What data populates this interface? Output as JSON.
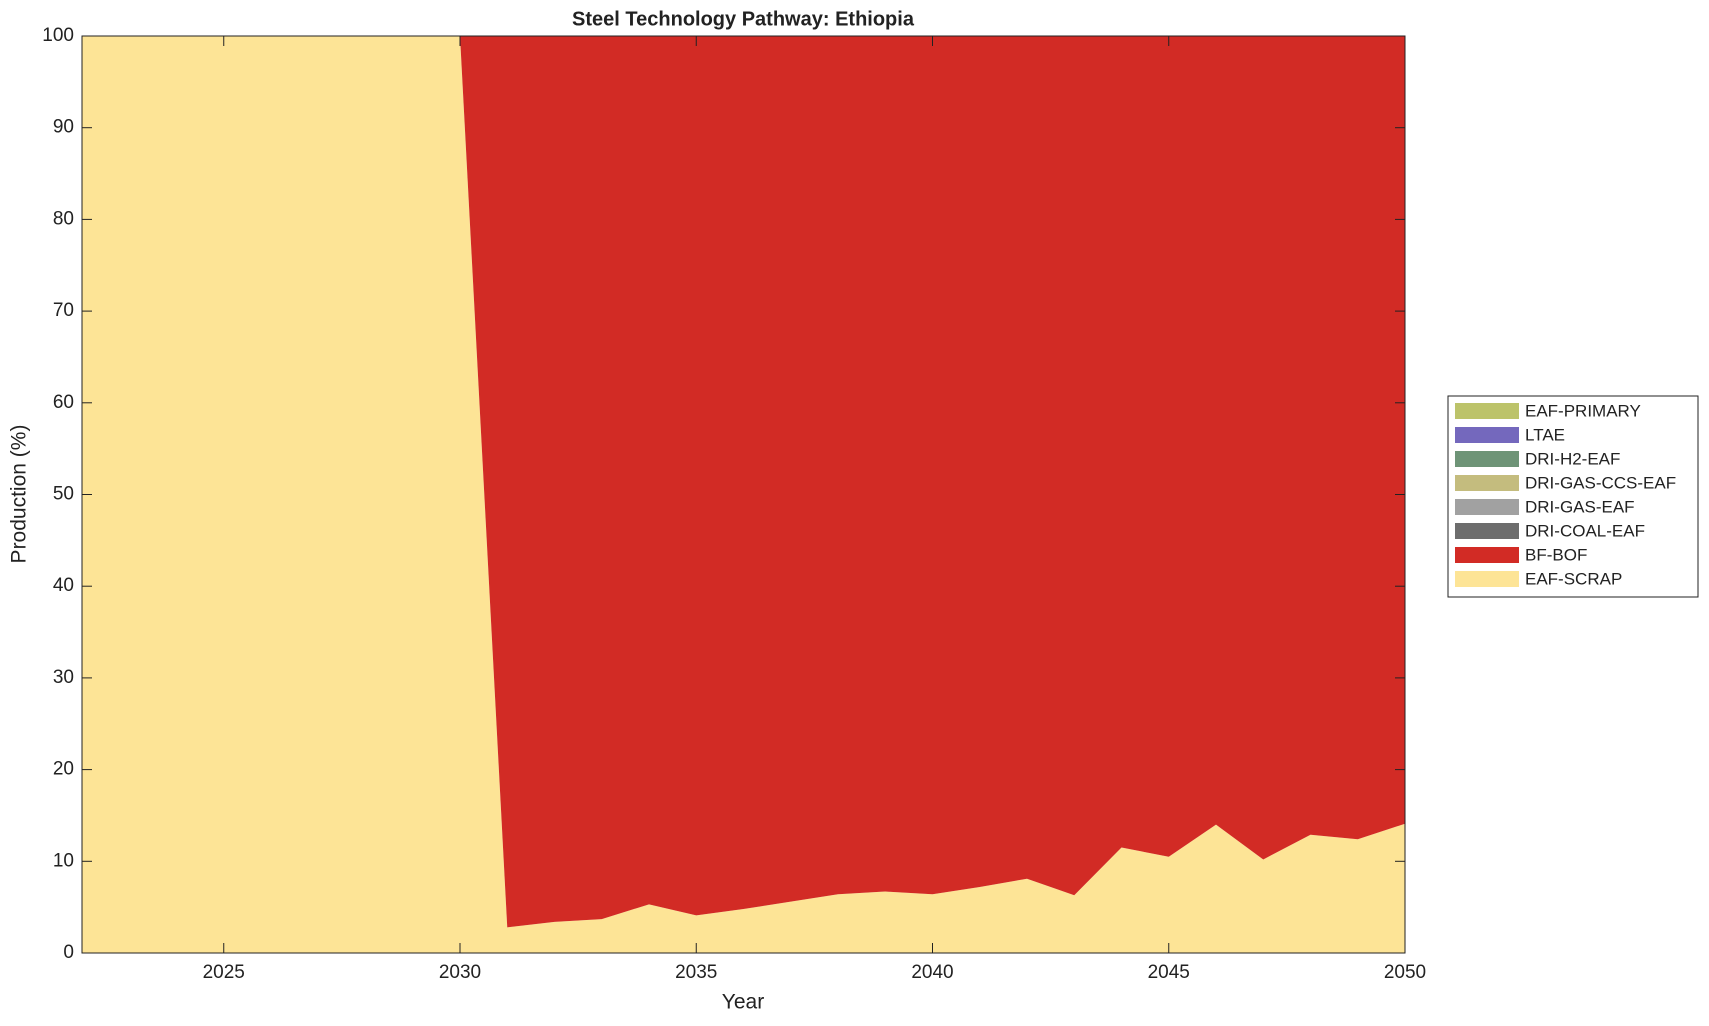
{
  "chart_data": {
    "type": "stacked-area",
    "title": "Steel Technology Pathway: Ethiopia",
    "x_label": "Year",
    "y_label": "Production (%)",
    "x": [
      2022,
      2023,
      2024,
      2025,
      2026,
      2027,
      2028,
      2029,
      2030,
      2031,
      2032,
      2033,
      2034,
      2035,
      2036,
      2037,
      2038,
      2039,
      2040,
      2041,
      2042,
      2043,
      2044,
      2045,
      2046,
      2047,
      2048,
      2049,
      2050
    ],
    "series": [
      {
        "name": "EAF-SCRAP",
        "color": "#fde496",
        "values": [
          100,
          100,
          100,
          100,
          100,
          100,
          100,
          100,
          100,
          2.8,
          3.4,
          3.7,
          5.3,
          4.1,
          4.8,
          5.6,
          6.4,
          6.7,
          6.4,
          7.2,
          8.1,
          6.3,
          11.5,
          10.5,
          14.0,
          10.2,
          12.9,
          12.4,
          14.1
        ]
      },
      {
        "name": "BF-BOF",
        "color": "#d22b25",
        "values": [
          0,
          0,
          0,
          0,
          0,
          0,
          0,
          0,
          0,
          97.2,
          96.6,
          96.3,
          94.7,
          95.9,
          95.2,
          94.4,
          93.6,
          93.3,
          93.6,
          92.8,
          91.9,
          93.7,
          88.5,
          89.5,
          86.0,
          89.8,
          87.1,
          87.6,
          85.9
        ]
      },
      {
        "name": "DRI-COAL-EAF",
        "color": "#6d6d6d",
        "values": [
          0,
          0,
          0,
          0,
          0,
          0,
          0,
          0,
          0,
          0,
          0,
          0,
          0,
          0,
          0,
          0,
          0,
          0,
          0,
          0,
          0,
          0,
          0,
          0,
          0,
          0,
          0,
          0,
          0
        ]
      },
      {
        "name": "DRI-GAS-EAF",
        "color": "#a1a1a1",
        "values": [
          0,
          0,
          0,
          0,
          0,
          0,
          0,
          0,
          0,
          0,
          0,
          0,
          0,
          0,
          0,
          0,
          0,
          0,
          0,
          0,
          0,
          0,
          0,
          0,
          0,
          0,
          0,
          0,
          0
        ]
      },
      {
        "name": "DRI-GAS-CCS-EAF",
        "color": "#c4bc7e",
        "values": [
          0,
          0,
          0,
          0,
          0,
          0,
          0,
          0,
          0,
          0,
          0,
          0,
          0,
          0,
          0,
          0,
          0,
          0,
          0,
          0,
          0,
          0,
          0,
          0,
          0,
          0,
          0,
          0,
          0
        ]
      },
      {
        "name": "DRI-H2-EAF",
        "color": "#6e9477",
        "values": [
          0,
          0,
          0,
          0,
          0,
          0,
          0,
          0,
          0,
          0,
          0,
          0,
          0,
          0,
          0,
          0,
          0,
          0,
          0,
          0,
          0,
          0,
          0,
          0,
          0,
          0,
          0,
          0,
          0
        ]
      },
      {
        "name": "LTAE",
        "color": "#7468bd",
        "values": [
          0,
          0,
          0,
          0,
          0,
          0,
          0,
          0,
          0,
          0,
          0,
          0,
          0,
          0,
          0,
          0,
          0,
          0,
          0,
          0,
          0,
          0,
          0,
          0,
          0,
          0,
          0,
          0,
          0
        ]
      },
      {
        "name": "EAF-PRIMARY",
        "color": "#bcc36a",
        "values": [
          0,
          0,
          0,
          0,
          0,
          0,
          0,
          0,
          0,
          0,
          0,
          0,
          0,
          0,
          0,
          0,
          0,
          0,
          0,
          0,
          0,
          0,
          0,
          0,
          0,
          0,
          0,
          0,
          0
        ]
      }
    ],
    "xlim": [
      2022,
      2050
    ],
    "ylim": [
      0,
      100
    ],
    "xticks": [
      2025,
      2030,
      2035,
      2040,
      2045,
      2050
    ],
    "yticks": [
      0,
      10,
      20,
      30,
      40,
      50,
      60,
      70,
      80,
      90,
      100
    ],
    "legend_position": "outside-right"
  }
}
